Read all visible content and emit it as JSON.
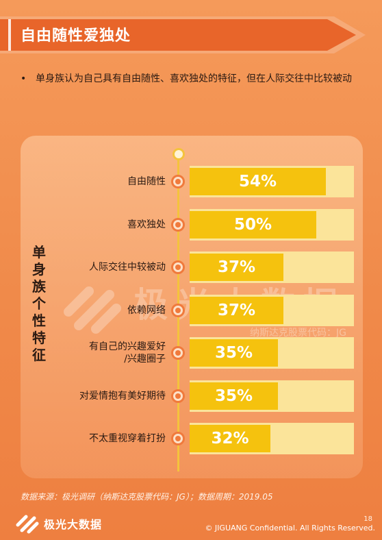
{
  "header": {
    "title": "自由随性爱独处"
  },
  "bullet": {
    "marker": "•",
    "text": "单身族认为自己具有自由随性、喜欢独处的特征，但在人际交往中比较被动"
  },
  "side_title": "单身族个性特征",
  "chart_data": {
    "type": "bar",
    "orientation": "horizontal",
    "categories": [
      "自由随性",
      "喜欢独处",
      "人际交往中较被动",
      "依赖网络",
      "有自己的兴趣爱好\n/兴趣圈子",
      "对爱情抱有美好期待",
      "不太重视穿着打扮"
    ],
    "values": [
      54,
      50,
      37,
      37,
      35,
      35,
      32
    ],
    "labels": [
      "54%",
      "50%",
      "37%",
      "37%",
      "35%",
      "35%",
      "32%"
    ],
    "xlim": [
      0,
      65
    ],
    "colors": {
      "fill": "#f5c20e",
      "track": "#fbe49a",
      "node": "#f07a3c"
    }
  },
  "watermark": {
    "text": "极光大数据",
    "sub": "纳斯达克股票代码：JG"
  },
  "footer": {
    "source": "数据来源：极光调研（纳斯达克股票代码：JG）；数据周期：2019.05",
    "brand": "极光大数据",
    "page": "18",
    "copyright": "© JIGUANG Confidential. All Rights Reserved."
  }
}
